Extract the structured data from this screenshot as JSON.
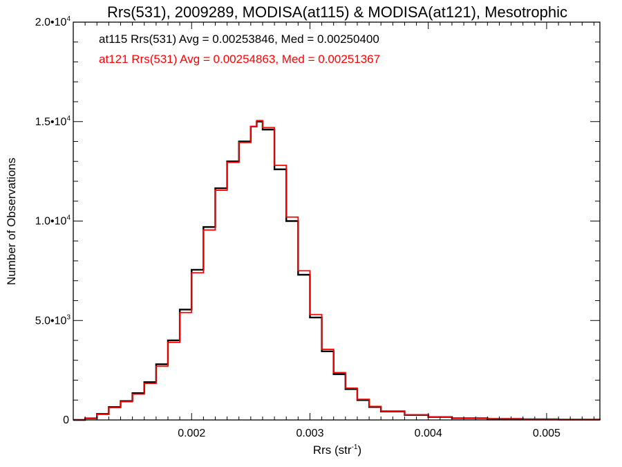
{
  "chart_data": {
    "type": "line",
    "title": "Rrs(531), 2009289, MODISA(at115) & MODISA(at121), Mesotrophic",
    "xlabel": "Rrs (str",
    "xlabel_exponent": "-1",
    "xlabel_close": ")",
    "ylabel": "Number of Observations",
    "xlim": [
      0.001,
      0.00545
    ],
    "ylim": [
      0,
      20000
    ],
    "grid": false,
    "x_ticks": [
      {
        "value": 0.002,
        "label": "0.002"
      },
      {
        "value": 0.003,
        "label": "0.003"
      },
      {
        "value": 0.004,
        "label": "0.004"
      },
      {
        "value": 0.005,
        "label": "0.005"
      }
    ],
    "y_ticks": [
      {
        "value": 0,
        "label": "0",
        "exp": ""
      },
      {
        "value": 5000,
        "label": "5.0•10",
        "exp": "3"
      },
      {
        "value": 10000,
        "label": "1.0•10",
        "exp": "4"
      },
      {
        "value": 15000,
        "label": "1.5•10",
        "exp": "4"
      },
      {
        "value": 20000,
        "label": "2.0•10",
        "exp": "4"
      }
    ],
    "annotations": [
      {
        "text": "at115 Rrs(531) Avg = 0.00253846, Med = 0.00250400",
        "color": "#000000"
      },
      {
        "text": "at121 Rrs(531) Avg = 0.00254863, Med = 0.00251367",
        "color": "#ff0000"
      }
    ],
    "series": [
      {
        "color": "#000000",
        "step": "histogram",
        "x": [
          0.001,
          0.0011,
          0.0012,
          0.0013,
          0.0014,
          0.0015,
          0.0016,
          0.0017,
          0.0018,
          0.0019,
          0.002,
          0.0021,
          0.0022,
          0.0023,
          0.0024,
          0.0025,
          0.00255,
          0.0026,
          0.0027,
          0.0028,
          0.0029,
          0.003,
          0.0031,
          0.0032,
          0.0033,
          0.0034,
          0.0035,
          0.0036,
          0.0038,
          0.004,
          0.0042,
          0.0045,
          0.0048,
          0.0051,
          0.00545
        ],
        "y": [
          0,
          80,
          300,
          650,
          950,
          1350,
          1900,
          2800,
          4000,
          5550,
          7550,
          9700,
          11650,
          13000,
          14000,
          14750,
          15000,
          14600,
          12600,
          10000,
          7300,
          5150,
          3450,
          2300,
          1550,
          1000,
          650,
          430,
          250,
          150,
          90,
          55,
          35,
          20,
          10
        ]
      },
      {
        "color": "#ff0000",
        "step": "histogram",
        "x": [
          0.001,
          0.0011,
          0.0012,
          0.0013,
          0.0014,
          0.0015,
          0.0016,
          0.0017,
          0.0018,
          0.0019,
          0.002,
          0.0021,
          0.0022,
          0.0023,
          0.0024,
          0.0025,
          0.00255,
          0.0026,
          0.0027,
          0.0028,
          0.0029,
          0.003,
          0.0031,
          0.0032,
          0.0033,
          0.0034,
          0.0035,
          0.0036,
          0.0038,
          0.004,
          0.0042,
          0.0045,
          0.0048,
          0.0051,
          0.00545
        ],
        "y": [
          0,
          75,
          280,
          620,
          920,
          1300,
          1840,
          2700,
          3900,
          5400,
          7400,
          9550,
          11550,
          12950,
          13950,
          14750,
          15050,
          14700,
          12800,
          10200,
          7500,
          5300,
          3550,
          2380,
          1600,
          1040,
          680,
          450,
          260,
          160,
          95,
          58,
          38,
          22,
          12
        ]
      }
    ]
  }
}
